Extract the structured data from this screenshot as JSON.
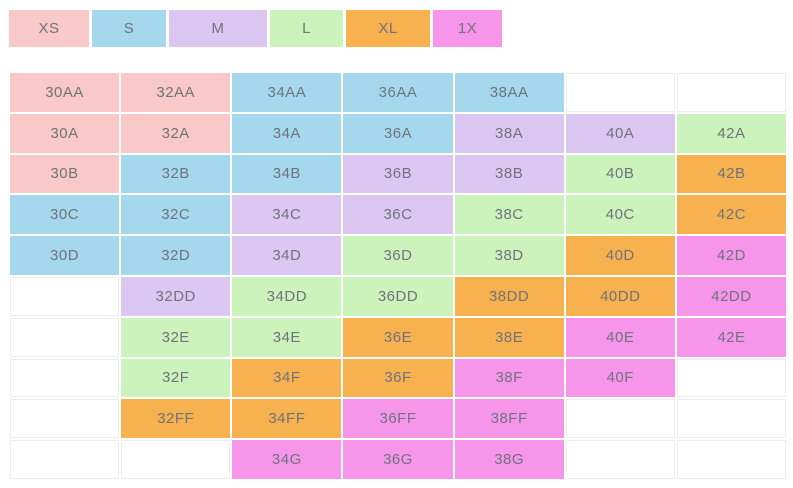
{
  "palette": {
    "XS": "#F9C8C8",
    "S": "#A5D8EC",
    "M": "#DCC7F3",
    "L": "#CDF3BD",
    "XL": "#F8B14F",
    "1X": "#F795EB",
    "text": "#6F737B",
    "empty_cell_border": "#EDEDED"
  },
  "chart_data": {
    "type": "table",
    "legend": [
      {
        "label": "XS",
        "color": "#F9C8C8"
      },
      {
        "label": "S",
        "color": "#A5D8EC"
      },
      {
        "label": "M",
        "color": "#DCC7F3"
      },
      {
        "label": "L",
        "color": "#CDF3BD"
      },
      {
        "label": "XL",
        "color": "#F8B14F"
      },
      {
        "label": "1X",
        "color": "#F795EB"
      }
    ],
    "legend_widths": [
      80,
      74,
      98,
      73,
      84,
      69
    ],
    "columns": 7,
    "rows": [
      [
        {
          "label": "30AA",
          "size": "XS"
        },
        {
          "label": "32AA",
          "size": "XS"
        },
        {
          "label": "34AA",
          "size": "S"
        },
        {
          "label": "36AA",
          "size": "S"
        },
        {
          "label": "38AA",
          "size": "S"
        },
        {
          "label": "",
          "size": null
        },
        {
          "label": "",
          "size": null
        }
      ],
      [
        {
          "label": "30A",
          "size": "XS"
        },
        {
          "label": "32A",
          "size": "XS"
        },
        {
          "label": "34A",
          "size": "S"
        },
        {
          "label": "36A",
          "size": "S"
        },
        {
          "label": "38A",
          "size": "M"
        },
        {
          "label": "40A",
          "size": "M"
        },
        {
          "label": "42A",
          "size": "L"
        }
      ],
      [
        {
          "label": "30B",
          "size": "XS"
        },
        {
          "label": "32B",
          "size": "S"
        },
        {
          "label": "34B",
          "size": "S"
        },
        {
          "label": "36B",
          "size": "M"
        },
        {
          "label": "38B",
          "size": "M"
        },
        {
          "label": "40B",
          "size": "L"
        },
        {
          "label": "42B",
          "size": "XL"
        }
      ],
      [
        {
          "label": "30C",
          "size": "S"
        },
        {
          "label": "32C",
          "size": "S"
        },
        {
          "label": "34C",
          "size": "M"
        },
        {
          "label": "36C",
          "size": "M"
        },
        {
          "label": "38C",
          "size": "L"
        },
        {
          "label": "40C",
          "size": "L"
        },
        {
          "label": "42C",
          "size": "XL"
        }
      ],
      [
        {
          "label": "30D",
          "size": "S"
        },
        {
          "label": "32D",
          "size": "S"
        },
        {
          "label": "34D",
          "size": "M"
        },
        {
          "label": "36D",
          "size": "L"
        },
        {
          "label": "38D",
          "size": "L"
        },
        {
          "label": "40D",
          "size": "XL"
        },
        {
          "label": "42D",
          "size": "1X"
        }
      ],
      [
        {
          "label": "",
          "size": null
        },
        {
          "label": "32DD",
          "size": "M"
        },
        {
          "label": "34DD",
          "size": "L"
        },
        {
          "label": "36DD",
          "size": "L"
        },
        {
          "label": "38DD",
          "size": "XL"
        },
        {
          "label": "40DD",
          "size": "XL"
        },
        {
          "label": "42DD",
          "size": "1X"
        }
      ],
      [
        {
          "label": "",
          "size": null
        },
        {
          "label": "32E",
          "size": "L"
        },
        {
          "label": "34E",
          "size": "L"
        },
        {
          "label": "36E",
          "size": "XL"
        },
        {
          "label": "38E",
          "size": "XL"
        },
        {
          "label": "40E",
          "size": "1X"
        },
        {
          "label": "42E",
          "size": "1X"
        }
      ],
      [
        {
          "label": "",
          "size": null
        },
        {
          "label": "32F",
          "size": "L"
        },
        {
          "label": "34F",
          "size": "XL"
        },
        {
          "label": "36F",
          "size": "XL"
        },
        {
          "label": "38F",
          "size": "1X"
        },
        {
          "label": "40F",
          "size": "1X"
        },
        {
          "label": "",
          "size": null
        }
      ],
      [
        {
          "label": "",
          "size": null
        },
        {
          "label": "32FF",
          "size": "XL"
        },
        {
          "label": "34FF",
          "size": "XL"
        },
        {
          "label": "36FF",
          "size": "1X"
        },
        {
          "label": "38FF",
          "size": "1X"
        },
        {
          "label": "",
          "size": null
        },
        {
          "label": "",
          "size": null
        }
      ],
      [
        {
          "label": "",
          "size": null
        },
        {
          "label": "",
          "size": null
        },
        {
          "label": "34G",
          "size": "1X"
        },
        {
          "label": "36G",
          "size": "1X"
        },
        {
          "label": "38G",
          "size": "1X"
        },
        {
          "label": "",
          "size": null
        },
        {
          "label": "",
          "size": null
        }
      ]
    ]
  }
}
